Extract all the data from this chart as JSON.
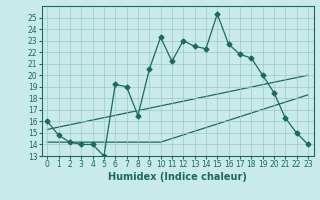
{
  "xlabel": "Humidex (Indice chaleur)",
  "bg_color": "#c8eaea",
  "line_color": "#1a6b5a",
  "xlim": [
    -0.5,
    23.5
  ],
  "ylim": [
    13,
    26
  ],
  "yticks": [
    13,
    14,
    15,
    16,
    17,
    18,
    19,
    20,
    21,
    22,
    23,
    24,
    25
  ],
  "xticks": [
    0,
    1,
    2,
    3,
    4,
    5,
    6,
    7,
    8,
    9,
    10,
    11,
    12,
    13,
    14,
    15,
    16,
    17,
    18,
    19,
    20,
    21,
    22,
    23
  ],
  "main_x": [
    0,
    1,
    2,
    3,
    4,
    5,
    6,
    7,
    8,
    9,
    10,
    11,
    12,
    13,
    14,
    15,
    16,
    17,
    18,
    19,
    20,
    21,
    22,
    23
  ],
  "main_y": [
    16.0,
    14.8,
    14.2,
    14.0,
    14.0,
    13.0,
    19.2,
    19.0,
    16.5,
    20.5,
    23.3,
    21.2,
    23.0,
    22.5,
    22.3,
    25.3,
    22.7,
    21.8,
    21.5,
    20.0,
    18.5,
    16.3,
    15.0,
    14.0
  ],
  "line1_x": [
    0,
    23
  ],
  "line1_y": [
    15.3,
    20.0
  ],
  "line2_x": [
    0,
    10,
    23
  ],
  "line2_y": [
    14.2,
    14.2,
    18.3
  ],
  "grid_color": "#9ec8c8",
  "marker": "D",
  "markersize": 2.5,
  "linewidth": 0.9,
  "tick_fontsize": 5.5,
  "xlabel_fontsize": 7
}
